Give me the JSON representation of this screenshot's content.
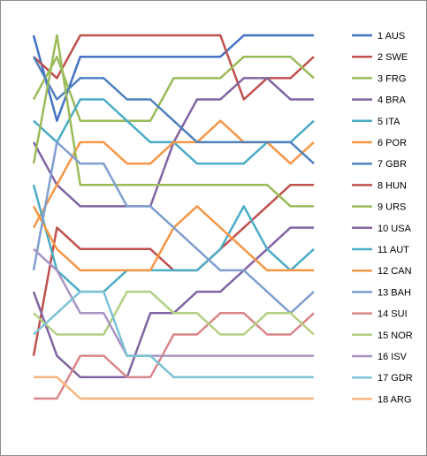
{
  "chart_data": {
    "type": "line",
    "title": "",
    "xlabel": "",
    "ylabel": "",
    "x": [
      1,
      2,
      3,
      4,
      5,
      6,
      7,
      8,
      9,
      10,
      11,
      12,
      13
    ],
    "ylim": [
      1,
      18
    ],
    "y_inverted": true,
    "grid": false,
    "legend_position": "right",
    "series": [
      {
        "name": "1 AUS",
        "color": "#4472C4",
        "values": [
          1,
          5,
          2,
          2,
          2,
          2,
          2,
          2,
          2,
          1,
          1,
          1,
          1
        ]
      },
      {
        "name": "2 SWE",
        "color": "#C0504D",
        "values": [
          2,
          3,
          1,
          1,
          1,
          1,
          1,
          1,
          1,
          4,
          3,
          3,
          2
        ]
      },
      {
        "name": "3 FRG",
        "color": "#9BBB59",
        "values": [
          4,
          2,
          5,
          5,
          5,
          5,
          3,
          3,
          3,
          2,
          2,
          2,
          3
        ]
      },
      {
        "name": "4 BRA",
        "color": "#8064A2",
        "values": [
          6,
          8,
          9,
          9,
          9,
          9,
          6,
          4,
          4,
          3,
          3,
          4,
          4
        ]
      },
      {
        "name": "5 ITA",
        "color": "#4BACC6",
        "values": [
          5,
          6,
          4,
          4,
          5,
          6,
          6,
          7,
          7,
          7,
          6,
          6,
          5
        ]
      },
      {
        "name": "6 POR",
        "color": "#F79646",
        "values": [
          10,
          8,
          6,
          6,
          7,
          7,
          6,
          6,
          5,
          6,
          6,
          7,
          6
        ]
      },
      {
        "name": "7 GBR",
        "color": "#4F81BD",
        "values": [
          2,
          4,
          3,
          3,
          4,
          4,
          5,
          6,
          6,
          6,
          6,
          6,
          7
        ]
      },
      {
        "name": "8 HUN",
        "color": "#C0504D",
        "values": [
          16,
          10,
          11,
          11,
          11,
          11,
          12,
          12,
          11,
          10,
          9,
          8,
          8
        ]
      },
      {
        "name": "9 URS",
        "color": "#9BBB59",
        "values": [
          7,
          1,
          8,
          8,
          8,
          8,
          8,
          8,
          8,
          8,
          8,
          9,
          9
        ]
      },
      {
        "name": "10 USA",
        "color": "#8064A2",
        "values": [
          13,
          16,
          17,
          17,
          17,
          14,
          14,
          13,
          13,
          12,
          11,
          10,
          10
        ]
      },
      {
        "name": "11 AUT",
        "color": "#4BACC6",
        "values": [
          8,
          12,
          13,
          13,
          12,
          12,
          12,
          12,
          11,
          9,
          11,
          12,
          11
        ]
      },
      {
        "name": "12 CAN",
        "color": "#F79646",
        "values": [
          9,
          11,
          12,
          12,
          12,
          12,
          10,
          9,
          10,
          11,
          12,
          12,
          12
        ]
      },
      {
        "name": "13 BAH",
        "color": "#7F9FCF",
        "values": [
          12,
          6,
          7,
          7,
          9,
          9,
          10,
          11,
          12,
          12,
          13,
          14,
          13
        ]
      },
      {
        "name": "14 SUI",
        "color": "#D9868A",
        "values": [
          18,
          18,
          16,
          16,
          17,
          17,
          15,
          15,
          14,
          14,
          15,
          15,
          14
        ]
      },
      {
        "name": "15 NOR",
        "color": "#B3CF83",
        "values": [
          14,
          15,
          15,
          15,
          13,
          13,
          14,
          14,
          15,
          15,
          14,
          14,
          15
        ]
      },
      {
        "name": "16 ISV",
        "color": "#A894C3",
        "values": [
          11,
          12,
          14,
          14,
          16,
          16,
          16,
          16,
          16,
          16,
          16,
          16,
          16
        ]
      },
      {
        "name": "17 GDR",
        "color": "#7DC2D6",
        "values": [
          15,
          14,
          13,
          13,
          16,
          16,
          17,
          17,
          17,
          17,
          17,
          17,
          17
        ]
      },
      {
        "name": "18 ARG",
        "color": "#FAB57E",
        "values": [
          17,
          17,
          18,
          18,
          18,
          18,
          18,
          18,
          18,
          18,
          18,
          18,
          18
        ]
      }
    ]
  }
}
